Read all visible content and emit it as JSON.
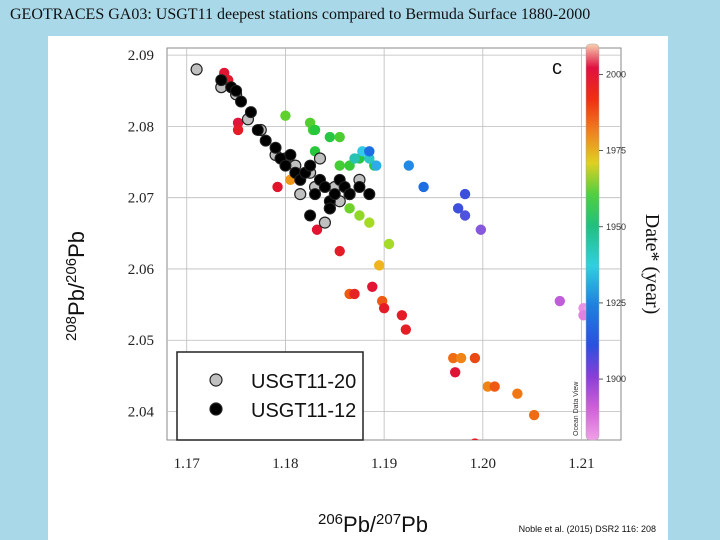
{
  "slide": {
    "title": "GEOTRACES GA03: USGT11 deepest stations compared to Bermuda Surface 1880-2000"
  },
  "citation": "Noble et al. (2015) DSR2 116: 208",
  "chart_data": {
    "type": "scatter",
    "panel_label": "c",
    "xlabel_parts": {
      "sup1": "206",
      "base1": "Pb/",
      "sup2": "207",
      "base2": "Pb"
    },
    "ylabel_parts": {
      "sup1": "208",
      "base1": "Pb/",
      "sup2": "206",
      "base2": "Pb"
    },
    "xlim": [
      1.168,
      1.214
    ],
    "ylim": [
      2.036,
      2.091
    ],
    "x_ticks": [
      1.17,
      1.18,
      1.19,
      1.2,
      1.21
    ],
    "x_tick_labels": [
      "1.17",
      "1.18",
      "1.19",
      "1.20",
      "1.21"
    ],
    "y_ticks": [
      2.04,
      2.05,
      2.06,
      2.07,
      2.08,
      2.09
    ],
    "y_tick_labels": [
      "2.04",
      "2.05",
      "2.06",
      "2.07",
      "2.08",
      "2.09"
    ],
    "grid": true,
    "legend_position": "bottom-left",
    "colorbar": {
      "title": "Date* (year)",
      "range": [
        1880,
        2010
      ],
      "ticks": [
        1900,
        1925,
        1950,
        1975,
        2000
      ],
      "tick_labels": [
        "1900",
        "1925",
        "1950",
        "1975",
        "2000"
      ],
      "source_text": "Ocean Data View"
    },
    "series": [
      {
        "name": "USGT11-20",
        "color": "#c0c0c0",
        "points": [
          [
            1.171,
            2.088
          ],
          [
            1.1735,
            2.0855
          ],
          [
            1.175,
            2.0845
          ],
          [
            1.1762,
            2.081
          ],
          [
            1.1775,
            2.0795
          ],
          [
            1.179,
            2.076
          ],
          [
            1.18,
            2.0755
          ],
          [
            1.181,
            2.0745
          ],
          [
            1.1825,
            2.0735
          ],
          [
            1.1835,
            2.0755
          ],
          [
            1.183,
            2.0715
          ],
          [
            1.1815,
            2.0705
          ],
          [
            1.1845,
            2.0685
          ],
          [
            1.1855,
            2.0695
          ],
          [
            1.1865,
            2.0705
          ],
          [
            1.184,
            2.0665
          ],
          [
            1.1875,
            2.0725
          ],
          [
            1.185,
            2.0715
          ]
        ]
      },
      {
        "name": "USGT11-12",
        "color": "#000000",
        "points": [
          [
            1.1735,
            2.0865
          ],
          [
            1.1745,
            2.0855
          ],
          [
            1.175,
            2.085
          ],
          [
            1.1755,
            2.0835
          ],
          [
            1.1765,
            2.082
          ],
          [
            1.1772,
            2.0795
          ],
          [
            1.178,
            2.078
          ],
          [
            1.179,
            2.077
          ],
          [
            1.1795,
            2.0755
          ],
          [
            1.18,
            2.0745
          ],
          [
            1.1805,
            2.076
          ],
          [
            1.181,
            2.0735
          ],
          [
            1.1815,
            2.0725
          ],
          [
            1.182,
            2.0735
          ],
          [
            1.1825,
            2.0745
          ],
          [
            1.183,
            2.0705
          ],
          [
            1.1835,
            2.0725
          ],
          [
            1.184,
            2.0715
          ],
          [
            1.1845,
            2.0695
          ],
          [
            1.185,
            2.0705
          ],
          [
            1.1855,
            2.0725
          ],
          [
            1.186,
            2.0715
          ],
          [
            1.1865,
            2.0705
          ],
          [
            1.1875,
            2.0715
          ],
          [
            1.1885,
            2.0705
          ],
          [
            1.1845,
            2.0685
          ],
          [
            1.1825,
            2.0675
          ]
        ]
      },
      {
        "name": "",
        "color_by": "year",
        "points": [
          [
            1.1738,
            2.0875,
            2002
          ],
          [
            1.1742,
            2.0865,
            1999
          ],
          [
            1.1752,
            2.0805,
            2004
          ],
          [
            1.1752,
            2.0795,
            1998
          ],
          [
            1.1792,
            2.0715,
            2000
          ],
          [
            1.1805,
            2.0725,
            1975
          ],
          [
            1.181,
            2.0735,
            1980
          ],
          [
            1.1832,
            2.0655,
            2001
          ],
          [
            1.1855,
            2.0625,
            1998
          ],
          [
            1.1865,
            2.0565,
            1985
          ],
          [
            1.187,
            2.0565,
            1996
          ],
          [
            1.1888,
            2.0575,
            2002
          ],
          [
            1.1898,
            2.0555,
            1985
          ],
          [
            1.19,
            2.0545,
            1998
          ],
          [
            1.1918,
            2.0535,
            1998
          ],
          [
            1.1922,
            2.0515,
            1997
          ],
          [
            1.197,
            2.0475,
            1982
          ],
          [
            1.1972,
            2.0455,
            2003
          ],
          [
            1.1978,
            2.0475,
            1978
          ],
          [
            1.1992,
            2.0475,
            1988
          ],
          [
            1.2005,
            2.0435,
            1978
          ],
          [
            1.2012,
            2.0435,
            1985
          ],
          [
            1.2035,
            2.0425,
            1980
          ],
          [
            1.2052,
            2.0395,
            1982
          ],
          [
            1.1992,
            2.0355,
            1998
          ],
          [
            1.18,
            2.0815,
            1948
          ],
          [
            1.1825,
            2.0805,
            1946
          ],
          [
            1.1828,
            2.0795,
            1944
          ],
          [
            1.183,
            2.0795,
            1940
          ],
          [
            1.1845,
            2.0785,
            1938
          ],
          [
            1.1855,
            2.0785,
            1945
          ],
          [
            1.183,
            2.0765,
            1940
          ],
          [
            1.1835,
            2.0755,
            1943
          ],
          [
            1.1855,
            2.0745,
            1944
          ],
          [
            1.1865,
            2.0745,
            1942
          ],
          [
            1.1875,
            2.0755,
            1938
          ],
          [
            1.189,
            2.0745,
            1940
          ],
          [
            1.1865,
            2.0685,
            1950
          ],
          [
            1.1875,
            2.0675,
            1955
          ],
          [
            1.1885,
            2.0665,
            1958
          ],
          [
            1.1905,
            2.0635,
            1958
          ],
          [
            1.1895,
            2.0605,
            1970
          ],
          [
            1.1832,
            2.0715,
            1962
          ],
          [
            1.187,
            2.0755,
            1920
          ],
          [
            1.1878,
            2.0765,
            1915
          ],
          [
            1.1885,
            2.0755,
            1918
          ],
          [
            1.1892,
            2.0745,
            1912
          ],
          [
            1.1925,
            2.0745,
            1908
          ],
          [
            1.1885,
            2.0765,
            1905
          ],
          [
            1.194,
            2.0715,
            1905
          ],
          [
            1.1982,
            2.0705,
            1898
          ],
          [
            1.1975,
            2.0685,
            1898
          ],
          [
            1.1982,
            2.0675,
            1897
          ],
          [
            1.1998,
            2.0655,
            1894
          ],
          [
            1.2078,
            2.0555,
            1891
          ],
          [
            1.2102,
            2.0545,
            1882
          ],
          [
            1.2108,
            2.0545,
            1880
          ],
          [
            1.2102,
            2.0535,
            1885
          ],
          [
            1.211,
            2.0515,
            1878
          ]
        ]
      }
    ]
  }
}
